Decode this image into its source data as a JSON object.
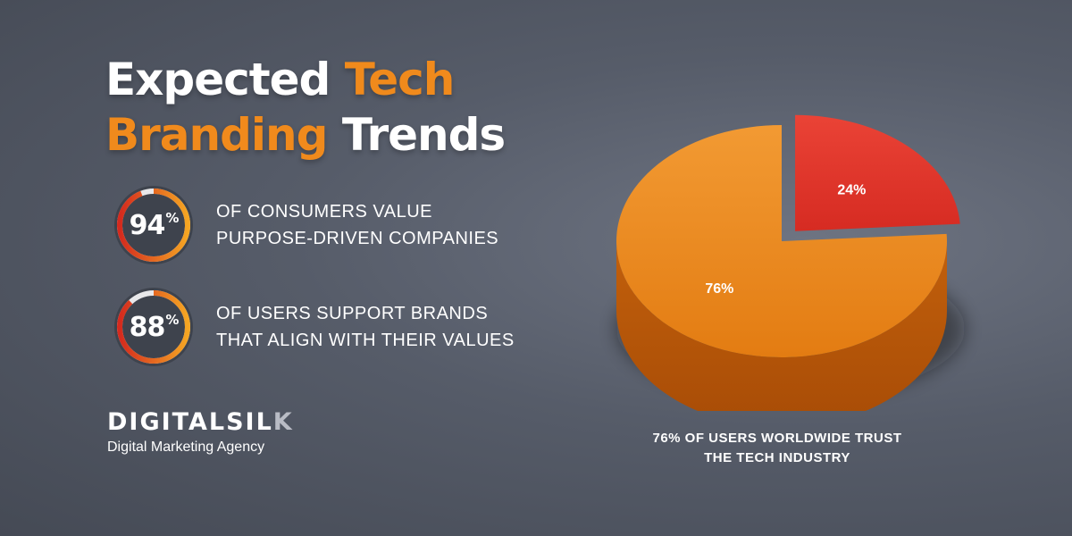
{
  "heading": {
    "line1_white": "Expected",
    "line1_accent": "Tech",
    "line2_accent": "Branding",
    "line2_white": "Trends"
  },
  "stats": [
    {
      "value": "94",
      "unit": "%",
      "fraction": 0.94,
      "line1": "OF CONSUMERS VALUE",
      "line2": "PURPOSE-DRIVEN COMPANIES"
    },
    {
      "value": "88",
      "unit": "%",
      "fraction": 0.88,
      "line1": "OF USERS SUPPORT BRANDS",
      "line2": "THAT ALIGN WITH THEIR VALUES"
    }
  ],
  "brand": {
    "name_main": "DIGITALSIL",
    "name_end": "K",
    "tagline": "Digital Marketing Agency"
  },
  "chart_data": {
    "type": "pie",
    "categories": [
      "",
      ""
    ],
    "values": [
      76,
      24
    ],
    "data_labels": [
      "76%",
      "24%"
    ],
    "colors": [
      "#ee8a1e",
      "#e0332b"
    ],
    "caption_line1": "76% OF USERS WORLDWIDE TRUST",
    "caption_line2": "THE TECH INDUSTRY",
    "style": "3d-exploded"
  },
  "colors": {
    "accent": "#f08a1c",
    "ring_start": "#d42a1e",
    "ring_end": "#f5a623",
    "ring_track": "#e8e8ea"
  }
}
